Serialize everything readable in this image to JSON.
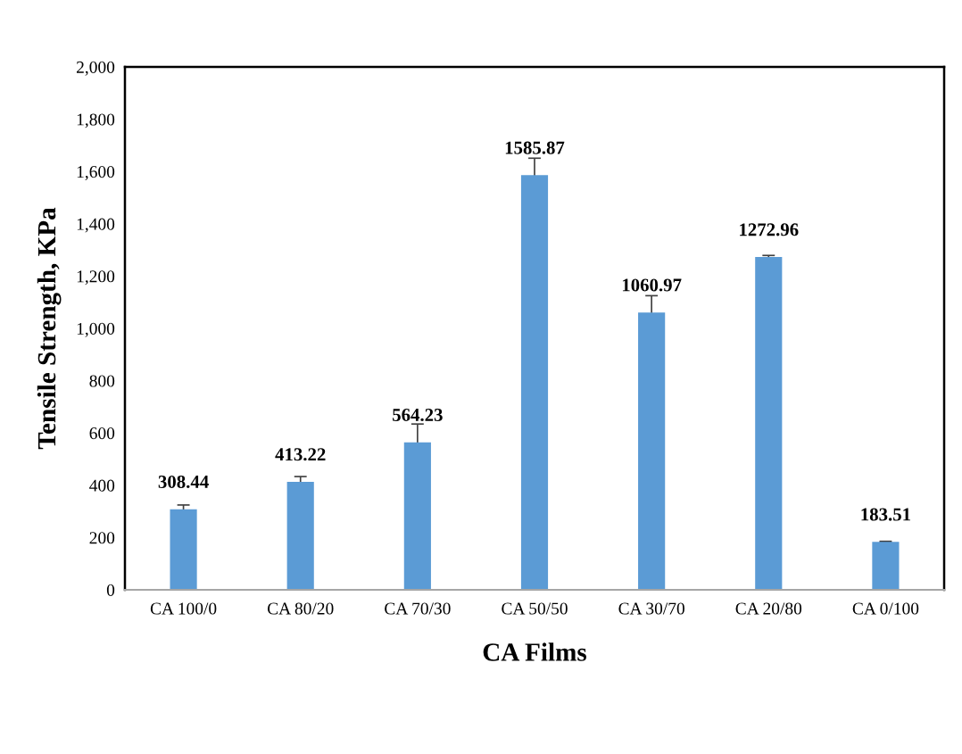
{
  "chart_data": {
    "type": "bar",
    "xlabel": "CA Films",
    "ylabel": "Tensile Strength, KPa",
    "categories": [
      "CA 100/0",
      "CA 80/20",
      "CA 70/30",
      "CA 50/50",
      "CA 30/70",
      "CA 20/80",
      "CA 0/100"
    ],
    "values": [
      308.44,
      413.22,
      564.23,
      1585.87,
      1060.97,
      1272.96,
      183.51
    ],
    "errors": [
      16,
      20,
      70,
      65,
      64,
      6,
      2
    ],
    "color": "#5b9bd5",
    "data_labels": true,
    "grid": false,
    "legend": false,
    "ylim": [
      0,
      2000
    ],
    "yticks": [
      {
        "value": 0,
        "label": "0"
      },
      {
        "value": 200,
        "label": "200"
      },
      {
        "value": 400,
        "label": "400"
      },
      {
        "value": 600,
        "label": "600"
      },
      {
        "value": 800,
        "label": "800"
      },
      {
        "value": 1000,
        "label": "1,000"
      },
      {
        "value": 1200,
        "label": "1,200"
      },
      {
        "value": 1400,
        "label": "1,400"
      },
      {
        "value": 1600,
        "label": "1,600"
      },
      {
        "value": 1800,
        "label": "1,800"
      },
      {
        "value": 2000,
        "label": "2,000"
      }
    ]
  }
}
